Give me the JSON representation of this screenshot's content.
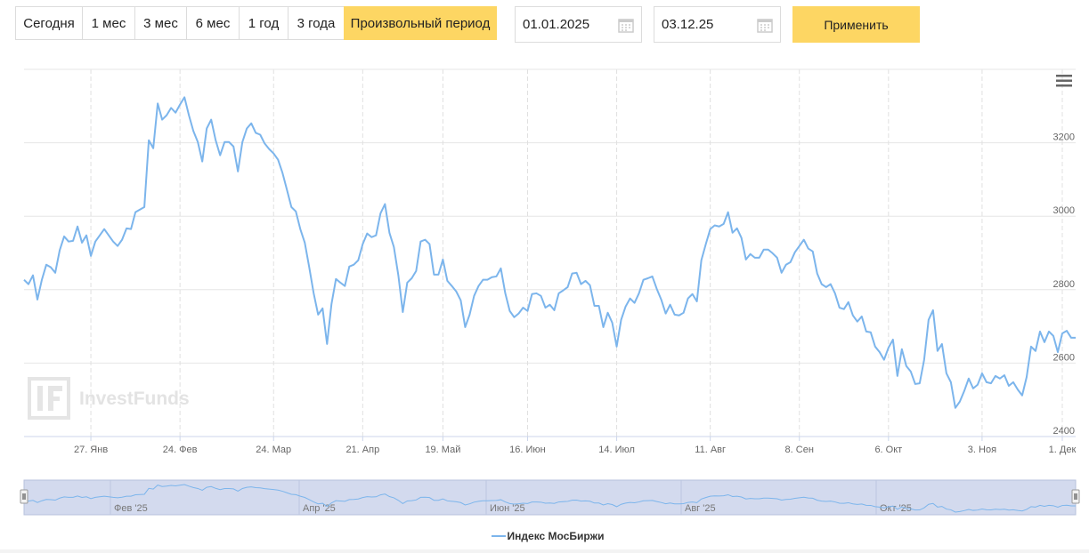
{
  "controls": {
    "ranges": [
      "Сегодня",
      "1 мес",
      "3 мес",
      "6 мес",
      "1 год",
      "3 года",
      "Произвольный период"
    ],
    "date_from": "01.01.2025",
    "date_to": "03.12.25",
    "apply": "Применить"
  },
  "chart_data": {
    "type": "line",
    "watermark": "InvestFunds",
    "categories": [
      null,
      null,
      null,
      null,
      null,
      null,
      null,
      null,
      null,
      null,
      null,
      null,
      null,
      null,
      null,
      "27. Янв",
      null,
      null,
      null,
      null,
      null,
      null,
      null,
      null,
      null,
      null,
      null,
      null,
      null,
      null,
      null,
      null,
      null,
      null,
      null,
      "24. Фев",
      null,
      null,
      null,
      null,
      null,
      null,
      null,
      null,
      null,
      null,
      null,
      null,
      null,
      null,
      null,
      null,
      null,
      null,
      null,
      null,
      "24. Мар",
      null,
      null,
      null,
      null,
      null,
      null,
      null,
      null,
      null,
      null,
      null,
      null,
      null,
      null,
      null,
      null,
      null,
      null,
      null,
      "21. Апр",
      null,
      null,
      null,
      null,
      null,
      null,
      null,
      null,
      null,
      null,
      null,
      null,
      null,
      null,
      null,
      null,
      null,
      "19. Май",
      null,
      null,
      null,
      null,
      null,
      null,
      null,
      null,
      null,
      null,
      null,
      null,
      null,
      null,
      null,
      null,
      null,
      null,
      "16. Июн",
      null,
      null,
      null,
      null,
      null,
      null,
      null,
      null,
      null,
      null,
      null,
      null,
      null,
      null,
      null,
      null,
      null,
      null,
      null,
      "14. Июл",
      null,
      null,
      null,
      null,
      null,
      null,
      null,
      null,
      null,
      null,
      null,
      null,
      null,
      null,
      null,
      null,
      null,
      null,
      null,
      null,
      "11. Авг",
      null,
      null,
      null,
      null,
      null,
      null,
      null,
      null,
      null,
      null,
      null,
      null,
      null,
      null,
      null,
      null,
      null,
      null,
      null,
      "8. Сен",
      null,
      null,
      null,
      null,
      null,
      null,
      null,
      null,
      null,
      null,
      null,
      null,
      null,
      null,
      null,
      null,
      null,
      null,
      null,
      "6. Окт",
      null,
      null,
      null,
      null,
      null,
      null,
      null,
      null,
      null,
      null,
      null,
      null,
      null,
      null,
      null,
      null,
      null,
      null,
      null,
      null,
      "3. Ноя",
      null,
      null,
      null,
      null,
      null,
      null,
      null,
      null,
      null,
      null,
      null,
      null,
      null,
      null,
      null,
      null,
      null,
      "1. Дек",
      null,
      null,
      null
    ],
    "series": [
      {
        "name": "Индекс МосБиржи",
        "color": "#7cb5ec",
        "values": [
          2827,
          2815,
          2839,
          2773,
          2827,
          2868,
          2861,
          2846,
          2907,
          2945,
          2931,
          2933,
          2972,
          2928,
          2948,
          2892,
          2931,
          2948,
          2965,
          2948,
          2931,
          2919,
          2936,
          2967,
          2965,
          3011,
          3018,
          3025,
          3207,
          3185,
          3307,
          3263,
          3275,
          3295,
          3282,
          3304,
          3324,
          3275,
          3232,
          3202,
          3149,
          3239,
          3263,
          3207,
          3166,
          3202,
          3202,
          3190,
          3122,
          3202,
          3239,
          3253,
          3227,
          3222,
          3198,
          3183,
          3171,
          3154,
          3118,
          3072,
          3025,
          3013,
          2965,
          2928,
          2861,
          2790,
          2732,
          2749,
          2652,
          2761,
          2829,
          2819,
          2810,
          2863,
          2868,
          2880,
          2924,
          2953,
          2943,
          2948,
          3008,
          3033,
          2955,
          2916,
          2839,
          2739,
          2819,
          2831,
          2851,
          2931,
          2936,
          2924,
          2841,
          2841,
          2882,
          2824,
          2810,
          2795,
          2771,
          2698,
          2732,
          2783,
          2810,
          2827,
          2827,
          2834,
          2836,
          2858,
          2790,
          2742,
          2725,
          2735,
          2751,
          2742,
          2788,
          2790,
          2783,
          2751,
          2759,
          2744,
          2790,
          2798,
          2807,
          2844,
          2846,
          2815,
          2824,
          2812,
          2756,
          2756,
          2698,
          2737,
          2710,
          2645,
          2718,
          2754,
          2776,
          2764,
          2790,
          2827,
          2831,
          2836,
          2802,
          2773,
          2735,
          2759,
          2732,
          2730,
          2737,
          2776,
          2788,
          2768,
          2880,
          2924,
          2965,
          2975,
          2972,
          2979,
          3011,
          2955,
          2967,
          2941,
          2882,
          2897,
          2887,
          2887,
          2909,
          2909,
          2899,
          2887,
          2846,
          2868,
          2875,
          2902,
          2919,
          2936,
          2912,
          2904,
          2844,
          2815,
          2807,
          2815,
          2790,
          2751,
          2747,
          2766,
          2730,
          2713,
          2727,
          2686,
          2684,
          2645,
          2630,
          2609,
          2642,
          2664,
          2565,
          2638,
          2592,
          2577,
          2543,
          2545,
          2609,
          2718,
          2744,
          2633,
          2652,
          2572,
          2548,
          2478,
          2495,
          2524,
          2558,
          2531,
          2541,
          2572,
          2548,
          2545,
          2565,
          2558,
          2567,
          2538,
          2548,
          2528,
          2512,
          2562,
          2645,
          2633,
          2686,
          2657,
          2686,
          2674,
          2630,
          2681,
          2688,
          2669,
          2669
        ]
      }
    ],
    "ylim": [
      2400,
      3400
    ],
    "yticks": [
      2400,
      2600,
      2800,
      3000,
      3200
    ],
    "grid": true,
    "navigator_labels": [
      "Фев '25",
      "Апр '25",
      "Июн '25",
      "Авг '25",
      "Окт '25"
    ]
  }
}
